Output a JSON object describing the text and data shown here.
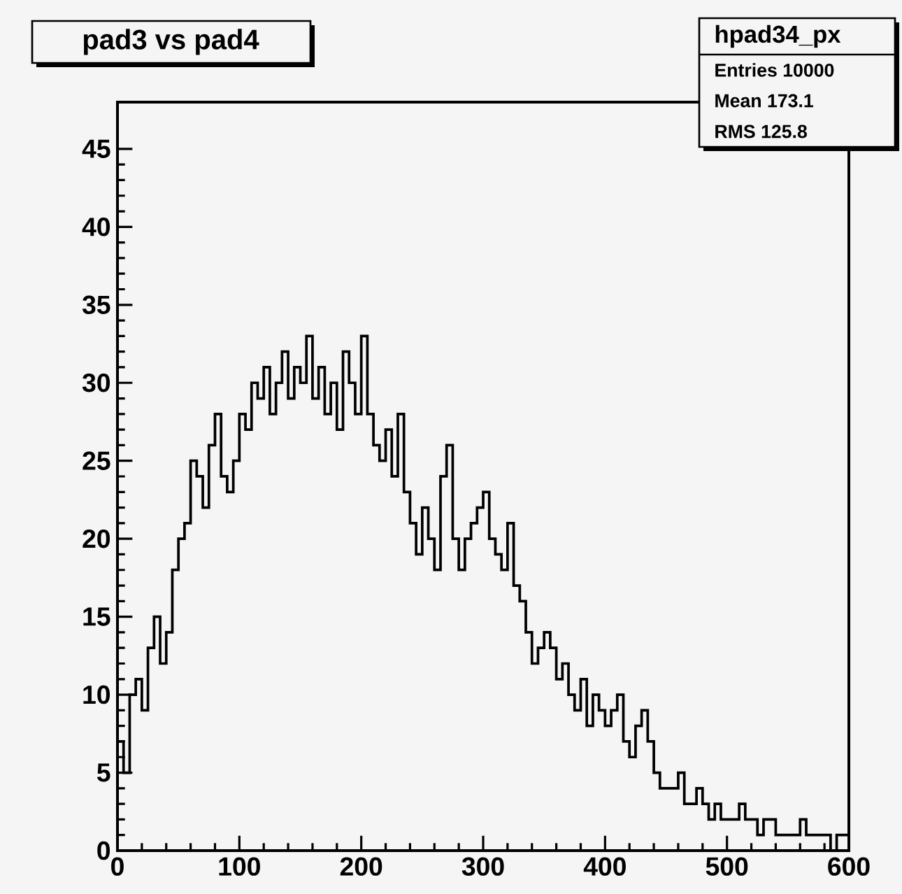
{
  "chart_data": {
    "type": "histogram",
    "title": "pad3 vs pad4",
    "annotations": [
      "hpad34_px",
      "Entries 10000",
      "Mean 173.1",
      "RMS 125.8"
    ],
    "bins": [
      0,
      5,
      10,
      15,
      20,
      25,
      30,
      35,
      40,
      45,
      50,
      55,
      60,
      65,
      70,
      75,
      80,
      85,
      90,
      95,
      100,
      105,
      110,
      115,
      120,
      125,
      130,
      135,
      140,
      145,
      150,
      155,
      160,
      165,
      170,
      175,
      180,
      185,
      190,
      195,
      200,
      205,
      210,
      215,
      220,
      225,
      230,
      235,
      240,
      245,
      250,
      255,
      260,
      265,
      270,
      275,
      280,
      285,
      290,
      295,
      300,
      305,
      310,
      315,
      320,
      325,
      330,
      335,
      340,
      345,
      350,
      355,
      360,
      365,
      370,
      375,
      380,
      385,
      390,
      395,
      400,
      405,
      410,
      415,
      420,
      425,
      430,
      435,
      440,
      445,
      450,
      455,
      460,
      465,
      470,
      475,
      480,
      485,
      490,
      495,
      500,
      505,
      510,
      515,
      520,
      525,
      530,
      535,
      540,
      545,
      550,
      555,
      560,
      565,
      570,
      575,
      580,
      585,
      590,
      595,
      600
    ],
    "values": [
      7,
      5,
      10,
      11,
      9,
      13,
      15,
      12,
      14,
      18,
      20,
      21,
      25,
      24,
      22,
      26,
      28,
      24,
      23,
      25,
      28,
      27,
      30,
      29,
      31,
      28,
      30,
      32,
      29,
      31,
      30,
      33,
      29,
      31,
      28,
      30,
      27,
      32,
      30,
      28,
      33,
      28,
      26,
      25,
      27,
      24,
      28,
      23,
      21,
      19,
      22,
      20,
      18,
      24,
      26,
      20,
      18,
      20,
      21,
      22,
      23,
      20,
      19,
      18,
      21,
      17,
      16,
      14,
      12,
      13,
      14,
      13,
      11,
      12,
      10,
      9,
      11,
      8,
      10,
      9,
      8,
      9,
      10,
      7,
      6,
      8,
      9,
      7,
      5,
      4,
      4,
      4,
      5,
      3,
      3,
      4,
      3,
      2,
      3,
      2,
      2,
      2,
      3,
      2,
      2,
      1,
      2,
      2,
      1,
      1,
      1,
      1,
      2,
      1,
      1,
      1,
      1,
      0,
      1,
      1
    ],
    "color": "#000000",
    "xlim": [
      0,
      600
    ],
    "ylim": [
      0,
      48
    ],
    "xticks": [
      0,
      100,
      200,
      300,
      400,
      500,
      600
    ],
    "yticks": [
      0,
      5,
      10,
      15,
      20,
      25,
      30,
      35,
      40,
      45
    ]
  }
}
